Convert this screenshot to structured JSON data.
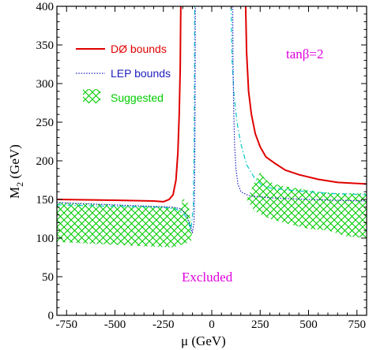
{
  "chart_data": {
    "type": "line",
    "xlabel_sym": "μ",
    "xlabel_unit": "(GeV)",
    "ylabel_main": "M",
    "ylabel_sub": "2",
    "ylabel_unit": "(GeV)",
    "xlim": [
      -800,
      800
    ],
    "ylim": [
      0,
      400
    ],
    "x_ticks": [
      -750,
      -500,
      -250,
      0,
      250,
      500,
      750
    ],
    "y_ticks": [
      0,
      50,
      100,
      150,
      200,
      250,
      300,
      350,
      400
    ],
    "annotations": {
      "tanbeta": "tanβ=2",
      "excluded": "Excluded"
    },
    "colors": {
      "d0": "#e00000",
      "lep": "#2020c0",
      "suggested": "#00cc00",
      "cyan": "#00c8c8",
      "annotation": "#e000e0"
    },
    "series": [
      {
        "name": "DØ bounds",
        "style": "solid",
        "color": "#e00000",
        "segments": [
          [
            [
              -800,
              150
            ],
            [
              -500,
              149
            ],
            [
              -300,
              148
            ],
            [
              -250,
              147
            ],
            [
              -220,
              150
            ],
            [
              -200,
              156
            ],
            [
              -185,
              175
            ],
            [
              -175,
              210
            ],
            [
              -168,
              260
            ],
            [
              -163,
              320
            ],
            [
              -160,
              400
            ]
          ],
          [
            [
              175,
              400
            ],
            [
              180,
              340
            ],
            [
              190,
              290
            ],
            [
              205,
              260
            ],
            [
              225,
              235
            ],
            [
              250,
              218
            ],
            [
              280,
              205
            ],
            [
              330,
              196
            ],
            [
              380,
              188
            ],
            [
              450,
              182
            ],
            [
              550,
              176
            ],
            [
              650,
              172
            ],
            [
              800,
              170
            ]
          ]
        ]
      },
      {
        "name": "LEP bounds",
        "style": "dotted",
        "color": "#2020c0",
        "segments": [
          [
            [
              -800,
              146
            ],
            [
              -500,
              143
            ],
            [
              -300,
              141
            ],
            [
              -200,
              140
            ],
            [
              -160,
              138
            ],
            [
              -130,
              130
            ],
            [
              -110,
              115
            ],
            [
              -100,
              107
            ],
            [
              -92,
              120
            ],
            [
              -88,
              180
            ],
            [
              -86,
              280
            ],
            [
              -85,
              400
            ]
          ],
          [
            [
              108,
              400
            ],
            [
              110,
              330
            ],
            [
              113,
              270
            ],
            [
              118,
              220
            ],
            [
              125,
              190
            ],
            [
              135,
              170
            ],
            [
              150,
              160
            ],
            [
              190,
              155
            ],
            [
              300,
              152
            ],
            [
              500,
              150
            ],
            [
              800,
              148
            ]
          ]
        ]
      },
      {
        "name": "cyan boundary",
        "style": "dashdot",
        "color": "#00c8c8",
        "segments": [
          [
            [
              -800,
              143
            ],
            [
              -500,
              141
            ],
            [
              -250,
              140
            ],
            [
              -180,
              137
            ],
            [
              -140,
              130
            ],
            [
              -120,
              120
            ],
            [
              -108,
              110
            ],
            [
              -95,
              140
            ],
            [
              -91,
              220
            ],
            [
              -89,
              320
            ],
            [
              -88,
              400
            ]
          ],
          [
            [
              100,
              400
            ],
            [
              105,
              330
            ],
            [
              115,
              285
            ],
            [
              130,
              250
            ],
            [
              150,
              222
            ],
            [
              180,
              195
            ],
            [
              220,
              178
            ],
            [
              260,
              168
            ],
            [
              300,
              165
            ],
            [
              400,
              162
            ],
            [
              600,
              158
            ],
            [
              800,
              156
            ]
          ]
        ]
      }
    ],
    "suggested_regions": [
      [
        [
          -800,
          146
        ],
        [
          -500,
          143
        ],
        [
          -300,
          141
        ],
        [
          -200,
          140
        ],
        [
          -160,
          138
        ],
        [
          -150,
          152
        ],
        [
          -120,
          145
        ],
        [
          -105,
          110
        ],
        [
          -102,
          100
        ],
        [
          -108,
          95
        ],
        [
          -200,
          88
        ],
        [
          -400,
          90
        ],
        [
          -800,
          95
        ]
      ],
      [
        [
          250,
          185
        ],
        [
          280,
          175
        ],
        [
          350,
          168
        ],
        [
          450,
          164
        ],
        [
          550,
          160
        ],
        [
          650,
          158
        ],
        [
          800,
          158
        ],
        [
          800,
          100
        ],
        [
          700,
          102
        ],
        [
          600,
          110
        ],
        [
          500,
          112
        ],
        [
          400,
          118
        ],
        [
          300,
          125
        ],
        [
          220,
          135
        ],
        [
          180,
          150
        ],
        [
          200,
          160
        ],
        [
          220,
          172
        ]
      ]
    ],
    "legend": [
      {
        "label": "DØ bounds",
        "style": "solid",
        "color": "#e00000"
      },
      {
        "label": "LEP bounds",
        "style": "dotted",
        "color": "#2020c0"
      },
      {
        "label": "Suggested",
        "style": "hatch",
        "color": "#00cc00"
      }
    ]
  }
}
